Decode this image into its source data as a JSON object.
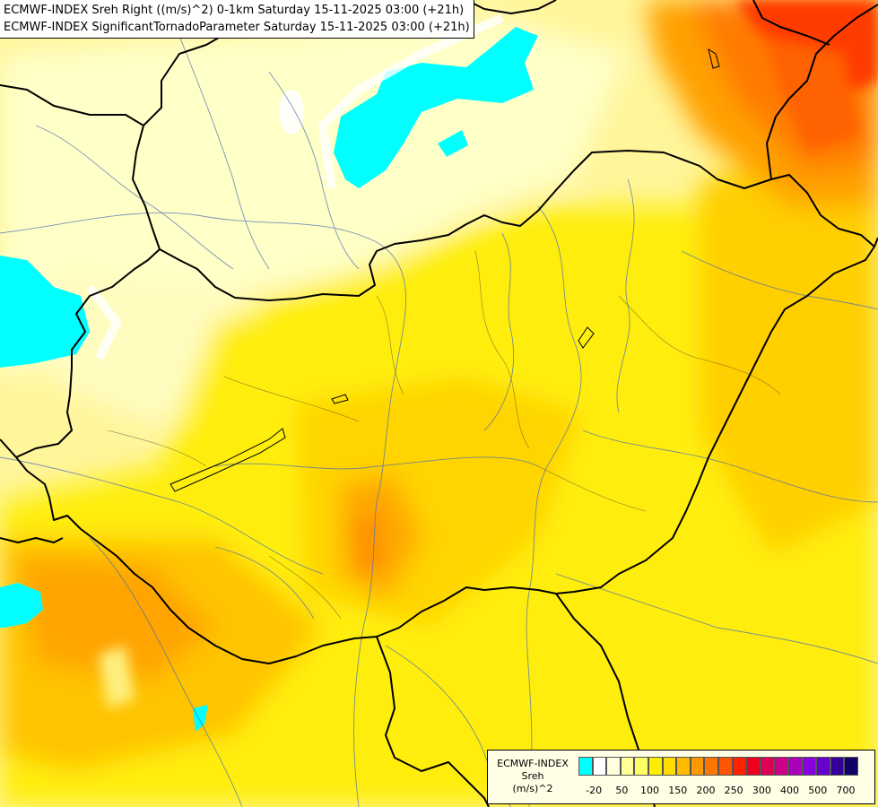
{
  "title": {
    "line1": "ECMWF-INDEX Sreh Right ((m/s)^2) 0-1km Saturday 15-11-2025 03:00 (+21h)",
    "line2": "ECMWF-INDEX SignificantTornadoParameter Saturday 15-11-2025 03:00 (+21h)"
  },
  "legend": {
    "source": "ECMWF-INDEX",
    "variable": "Sreh",
    "unit": "(m/s)^2",
    "swatch_colors": [
      "#00ffff",
      "#ffffff",
      "#ffffe0",
      "#ffff99",
      "#ffff66",
      "#ffee00",
      "#ffdd00",
      "#ffbb00",
      "#ff9900",
      "#ff7700",
      "#ff5500",
      "#ff2200",
      "#ee0022",
      "#dd0055",
      "#cc0088",
      "#aa00bb",
      "#8800dd",
      "#6600cc",
      "#330099",
      "#110066"
    ],
    "tick_labels": [
      "-20",
      "50",
      "100",
      "150",
      "200",
      "250",
      "300",
      "400",
      "500",
      "700"
    ]
  },
  "colors": {
    "cyan": "#00ffff",
    "pale": "#ffffc0",
    "yellow": "#ffee00",
    "gold": "#ffd200",
    "orange": "#ffaa00",
    "deep_orange": "#ff7700",
    "red": "#ff3300"
  }
}
